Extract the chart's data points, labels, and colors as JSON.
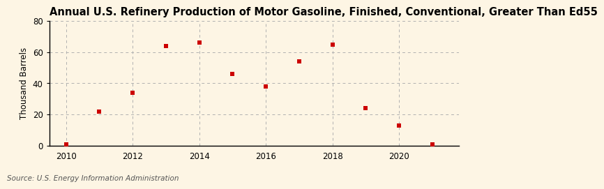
{
  "title": "Annual U.S. Refinery Production of Motor Gasoline, Finished, Conventional, Greater Than Ed55",
  "ylabel": "Thousand Barrels",
  "source": "Source: U.S. Energy Information Administration",
  "background_color": "#fdf5e4",
  "plot_bg_color": "#fdf5e4",
  "years": [
    2010,
    2011,
    2012,
    2013,
    2014,
    2015,
    2016,
    2017,
    2018,
    2019,
    2020,
    2021
  ],
  "values": [
    1,
    22,
    34,
    64,
    66,
    46,
    38,
    54,
    65,
    24,
    13,
    1
  ],
  "marker_color": "#cc0000",
  "marker": "s",
  "marker_size": 4,
  "ylim": [
    0,
    80
  ],
  "yticks": [
    0,
    20,
    40,
    60,
    80
  ],
  "xlim": [
    2009.5,
    2021.8
  ],
  "xticks": [
    2010,
    2012,
    2014,
    2016,
    2018,
    2020
  ],
  "grid_color": "#b0b0b0",
  "grid_linestyle": "--",
  "title_fontsize": 10.5,
  "label_fontsize": 8.5,
  "tick_fontsize": 8.5,
  "source_fontsize": 7.5
}
